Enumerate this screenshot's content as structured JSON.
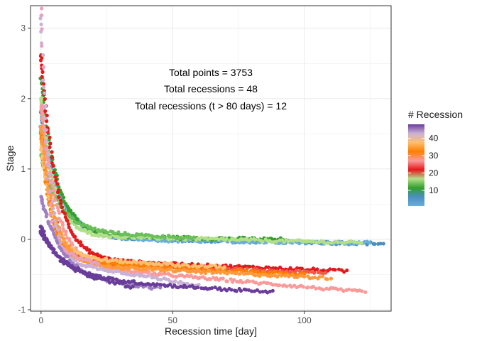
{
  "chart_data": {
    "type": "scatter",
    "title": "",
    "xlabel": "Recession time [day]",
    "ylabel": "Stage",
    "xlim": [
      -4,
      133
    ],
    "ylim": [
      -1.02,
      3.32
    ],
    "x_ticks": [
      0,
      50,
      100
    ],
    "y_ticks": [
      -1,
      0,
      1,
      2,
      3
    ],
    "grid": true,
    "annotations": [
      "Total points = 3753",
      "Total recessions = 48",
      "Total recessions (t > 80 days) = 12"
    ],
    "legend": {
      "title": "# Recession",
      "placement": "right",
      "range": [
        1,
        48
      ],
      "ticks": [
        10,
        20,
        30,
        40
      ],
      "colors": [
        "#6baed6",
        "#4a8fc2",
        "#33a02c",
        "#b2df8a",
        "#e31a1c",
        "#fb9a99",
        "#ff7f00",
        "#fdbf6f",
        "#cab2d6",
        "#6a3d9a"
      ]
    },
    "series": [
      {
        "recession": 5,
        "color": "#4a8fc2",
        "x0": 0,
        "x1": 130,
        "y0": 1.8,
        "yInf": 0.02,
        "k": 7,
        "tail": -0.06
      },
      {
        "recession": 9,
        "color": "#6baed6",
        "x0": 0,
        "x1": 125,
        "y0": 1.6,
        "yInf": 0.0,
        "k": 8,
        "tail": -0.05
      },
      {
        "recession": 13,
        "color": "#33a02c",
        "x0": 0,
        "x1": 92,
        "y0": 2.3,
        "yInf": 0.05,
        "k": 6,
        "tail": 0.0
      },
      {
        "recession": 16,
        "color": "#b2df8a",
        "x0": 0,
        "x1": 122,
        "y0": 2.0,
        "yInf": 0.06,
        "k": 5,
        "tail": -0.05
      },
      {
        "recession": 19,
        "color": "#6abf5a",
        "x0": 0,
        "x1": 58,
        "y0": 1.2,
        "yInf": 0.12,
        "k": 7,
        "tail": 0.02
      },
      {
        "recession": 23,
        "color": "#e31a1c",
        "x0": 0,
        "x1": 116,
        "y0": 2.6,
        "yInf": -0.28,
        "k": 6,
        "tail": -0.45
      },
      {
        "recession": 25,
        "color": "#fb9a99",
        "x0": 0,
        "x1": 123,
        "y0": 1.9,
        "yInf": -0.35,
        "k": 6,
        "tail": -0.75
      },
      {
        "recession": 27,
        "color": "#f05a4a",
        "x0": 0,
        "x1": 108,
        "y0": 1.5,
        "yInf": -0.32,
        "k": 5,
        "tail": -0.48
      },
      {
        "recession": 30,
        "color": "#ff7f00",
        "x0": 0,
        "x1": 100,
        "y0": 1.5,
        "yInf": -0.3,
        "k": 4,
        "tail": -0.5
      },
      {
        "recession": 32,
        "color": "#fdbf6f",
        "x0": 0,
        "x1": 70,
        "y0": 1.3,
        "yInf": -0.25,
        "k": 5,
        "tail": -0.4
      },
      {
        "recession": 34,
        "color": "#ff9a3c",
        "x0": 0,
        "x1": 110,
        "y0": 1.6,
        "yInf": -0.35,
        "k": 5,
        "tail": -0.55
      },
      {
        "recession": 38,
        "color": "#cab2d6",
        "x0": 0,
        "x1": 60,
        "y0": 3.2,
        "yInf": -0.28,
        "k": 3,
        "tail": -0.65
      },
      {
        "recession": 41,
        "color": "#e8a0c0",
        "x0": 0,
        "x1": 22,
        "y0": 3.3,
        "yInf": -0.1,
        "k": 2,
        "tail": -0.35
      },
      {
        "recession": 44,
        "color": "#9e7fc0",
        "x0": 0,
        "x1": 45,
        "y0": 0.6,
        "yInf": -0.55,
        "k": 8,
        "tail": -0.7
      },
      {
        "recession": 47,
        "color": "#6a3d9a",
        "x0": 0,
        "x1": 35,
        "y0": 0.2,
        "yInf": -0.4,
        "k": 6,
        "tail": -0.68
      },
      {
        "recession": 48,
        "color": "#6a3d9a",
        "x0": 0,
        "x1": 88,
        "y0": 0.1,
        "yInf": -0.55,
        "k": 10,
        "tail": -0.75
      }
    ]
  }
}
